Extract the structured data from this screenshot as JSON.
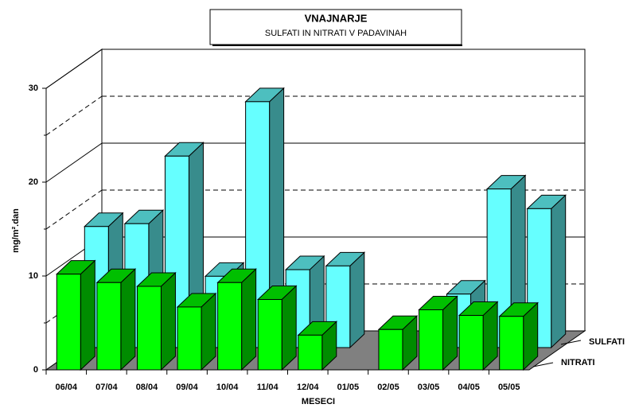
{
  "chart_data": {
    "type": "bar3d",
    "title": "VNAJNARJE",
    "subtitle": "SULFATI IN NITRATI V PADAVINAH",
    "x_label": "MESECI",
    "y_label": "mg/m².dan",
    "categories": [
      "06/04",
      "07/04",
      "08/04",
      "09/04",
      "10/04",
      "11/04",
      "12/04",
      "01/05",
      "02/05",
      "03/05",
      "04/05",
      "05/05"
    ],
    "series": [
      {
        "name": "NITRATI",
        "color": "#00ff00",
        "values": [
          10.2,
          9.3,
          8.9,
          6.7,
          9.3,
          7.5,
          3.7,
          null,
          4.3,
          6.4,
          5.8,
          5.7
        ]
      },
      {
        "name": "SULFATI",
        "color": "#66ffff",
        "values": [
          12.9,
          13.2,
          20.4,
          7.6,
          26.2,
          8.3,
          8.7,
          null,
          null,
          5.7,
          16.9,
          14.8
        ]
      }
    ],
    "ylim": [
      0,
      30
    ],
    "yticks": [
      0,
      10,
      20,
      30
    ],
    "minor_yticks": [
      5,
      15,
      25
    ],
    "grid": true
  }
}
